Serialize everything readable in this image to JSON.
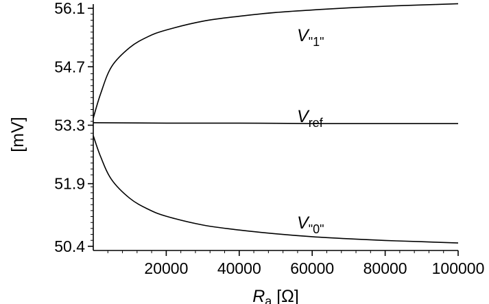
{
  "chart_data": {
    "type": "line",
    "xlabel": {
      "symbol": "R",
      "subscript": "a",
      "unit": " [Ω]"
    },
    "ylabel": "[mV]",
    "xlim": [
      0,
      100000
    ],
    "ylim": [
      50.3,
      56.2
    ],
    "x_ticks": [
      20000,
      40000,
      60000,
      80000,
      100000
    ],
    "x_tick_labels": [
      "20000",
      "40000",
      "60000",
      "80000",
      "100000"
    ],
    "y_ticks": [
      50.4,
      51.9,
      53.3,
      54.7,
      56.1
    ],
    "y_tick_labels": [
      "50.4",
      "51.9",
      "53.3",
      "54.7",
      "56.1"
    ],
    "grid": false,
    "legend": "none",
    "series": [
      {
        "label_symbol": "V",
        "label_subscript": "\"1\"",
        "x": [
          0,
          2000,
          5000,
          10000,
          15000,
          20000,
          30000,
          40000,
          50000,
          60000,
          70000,
          80000,
          90000,
          100000
        ],
        "values": [
          53.47,
          54.05,
          54.7,
          55.16,
          55.42,
          55.58,
          55.79,
          55.91,
          56.0,
          56.06,
          56.11,
          56.15,
          56.18,
          56.21
        ]
      },
      {
        "label_symbol": "V",
        "label_subscript": "ref",
        "x": [
          0,
          20000,
          40000,
          60000,
          80000,
          100000
        ],
        "values": [
          53.36,
          53.35,
          53.35,
          53.34,
          53.34,
          53.34
        ]
      },
      {
        "label_symbol": "V",
        "label_subscript": "\"0\"",
        "x": [
          0,
          2000,
          5000,
          10000,
          15000,
          20000,
          30000,
          40000,
          50000,
          60000,
          70000,
          80000,
          90000,
          100000
        ],
        "values": [
          53.05,
          52.55,
          52.0,
          51.55,
          51.29,
          51.12,
          50.91,
          50.79,
          50.7,
          50.63,
          50.58,
          50.54,
          50.51,
          50.48
        ]
      }
    ]
  }
}
